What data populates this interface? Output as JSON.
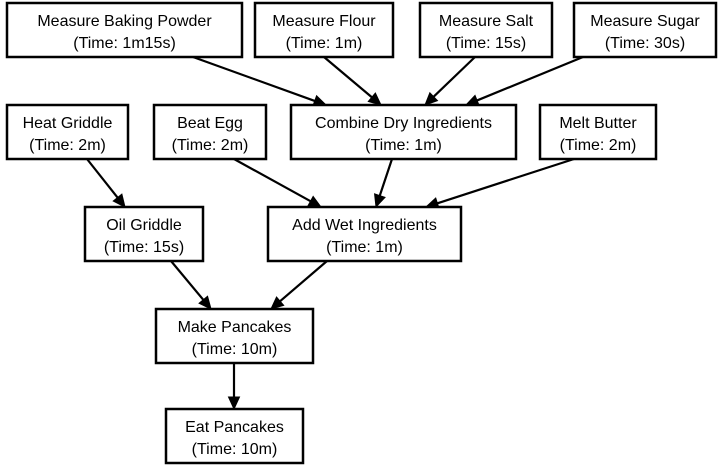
{
  "nodes": {
    "measure_baking_powder": {
      "name": "Measure Baking Powder",
      "time": "(Time: 1m15s)"
    },
    "measure_flour": {
      "name": "Measure Flour",
      "time": "(Time: 1m)"
    },
    "measure_salt": {
      "name": "Measure Salt",
      "time": "(Time: 15s)"
    },
    "measure_sugar": {
      "name": "Measure Sugar",
      "time": "(Time: 30s)"
    },
    "heat_griddle": {
      "name": "Heat Griddle",
      "time": "(Time: 2m)"
    },
    "beat_egg": {
      "name": "Beat Egg",
      "time": "(Time: 2m)"
    },
    "combine_dry": {
      "name": "Combine Dry Ingredients",
      "time": "(Time: 1m)"
    },
    "melt_butter": {
      "name": "Melt Butter",
      "time": "(Time: 2m)"
    },
    "oil_griddle": {
      "name": "Oil Griddle",
      "time": "(Time: 15s)"
    },
    "add_wet": {
      "name": "Add Wet Ingredients",
      "time": "(Time: 1m)"
    },
    "make_pancakes": {
      "name": "Make Pancakes",
      "time": "(Time: 10m)"
    },
    "eat_pancakes": {
      "name": "Eat Pancakes",
      "time": "(Time: 10m)"
    }
  },
  "edges": [
    {
      "from": "measure_baking_powder",
      "to": "combine_dry"
    },
    {
      "from": "measure_flour",
      "to": "combine_dry"
    },
    {
      "from": "measure_salt",
      "to": "combine_dry"
    },
    {
      "from": "measure_sugar",
      "to": "combine_dry"
    },
    {
      "from": "heat_griddle",
      "to": "oil_griddle"
    },
    {
      "from": "beat_egg",
      "to": "add_wet"
    },
    {
      "from": "combine_dry",
      "to": "add_wet"
    },
    {
      "from": "melt_butter",
      "to": "add_wet"
    },
    {
      "from": "oil_griddle",
      "to": "make_pancakes"
    },
    {
      "from": "add_wet",
      "to": "make_pancakes"
    },
    {
      "from": "make_pancakes",
      "to": "eat_pancakes"
    }
  ]
}
